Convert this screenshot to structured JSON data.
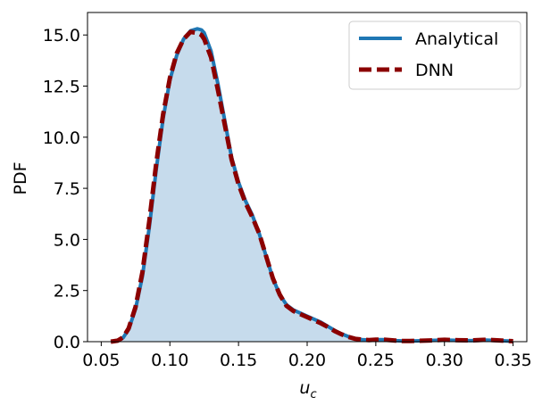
{
  "chart_data": {
    "type": "line",
    "xlabel": "u",
    "xlabel_sub": "c",
    "ylabel": "PDF",
    "xlim": [
      0.04,
      0.36
    ],
    "ylim": [
      0,
      16.1
    ],
    "x_ticks": [
      0.05,
      0.1,
      0.15,
      0.2,
      0.25,
      0.3,
      0.35
    ],
    "x_tick_labels": [
      "0.05",
      "0.10",
      "0.15",
      "0.20",
      "0.25",
      "0.30",
      "0.35"
    ],
    "y_ticks": [
      0,
      2.5,
      5,
      7.5,
      10,
      12.5,
      15
    ],
    "y_tick_labels": [
      "0.0",
      "2.5",
      "5.0",
      "7.5",
      "10.0",
      "12.5",
      "15.0"
    ],
    "grid": false,
    "legend_position": "top-right",
    "fill_color": "#c6dbec",
    "series": [
      {
        "name": "Analytical",
        "style": "solid",
        "color": "#1f77b4",
        "filled": true,
        "x": [
          0.057,
          0.062,
          0.066,
          0.07,
          0.075,
          0.08,
          0.085,
          0.09,
          0.095,
          0.1,
          0.105,
          0.11,
          0.115,
          0.12,
          0.123,
          0.125,
          0.13,
          0.135,
          0.14,
          0.145,
          0.15,
          0.155,
          0.16,
          0.165,
          0.17,
          0.175,
          0.18,
          0.185,
          0.19,
          0.195,
          0.2,
          0.205,
          0.21,
          0.215,
          0.22,
          0.225,
          0.23,
          0.235,
          0.24,
          0.245,
          0.25,
          0.255,
          0.26,
          0.265,
          0.27,
          0.275,
          0.28,
          0.29,
          0.3,
          0.31,
          0.32,
          0.33,
          0.34,
          0.35
        ],
        "y": [
          0,
          0.05,
          0.2,
          0.6,
          1.6,
          3.2,
          5.6,
          8.4,
          10.9,
          12.8,
          14.0,
          14.8,
          15.2,
          15.3,
          15.25,
          15.1,
          14.2,
          12.6,
          10.8,
          9.0,
          7.8,
          6.9,
          6.2,
          5.3,
          4.2,
          3.1,
          2.3,
          1.8,
          1.55,
          1.4,
          1.25,
          1.1,
          0.95,
          0.75,
          0.55,
          0.38,
          0.25,
          0.15,
          0.1,
          0.08,
          0.1,
          0.1,
          0.08,
          0.05,
          0.03,
          0.03,
          0.04,
          0.06,
          0.08,
          0.06,
          0.05,
          0.08,
          0.05,
          0.02
        ]
      },
      {
        "name": "DNN",
        "style": "dashed",
        "color": "#8b0000",
        "filled": false,
        "x": [
          0.057,
          0.062,
          0.066,
          0.07,
          0.075,
          0.08,
          0.085,
          0.09,
          0.095,
          0.1,
          0.105,
          0.11,
          0.115,
          0.12,
          0.123,
          0.125,
          0.13,
          0.135,
          0.14,
          0.145,
          0.15,
          0.155,
          0.16,
          0.165,
          0.17,
          0.175,
          0.18,
          0.185,
          0.19,
          0.195,
          0.2,
          0.205,
          0.21,
          0.215,
          0.22,
          0.225,
          0.23,
          0.235,
          0.24,
          0.245,
          0.25,
          0.255,
          0.26,
          0.265,
          0.27,
          0.275,
          0.28,
          0.29,
          0.3,
          0.31,
          0.32,
          0.33,
          0.34,
          0.35
        ],
        "y": [
          0,
          0.05,
          0.22,
          0.65,
          1.7,
          3.4,
          5.9,
          8.7,
          11.1,
          12.9,
          14.1,
          14.8,
          15.15,
          15.1,
          15.0,
          14.8,
          13.9,
          12.3,
          10.6,
          8.9,
          7.7,
          6.8,
          6.1,
          5.3,
          4.2,
          3.1,
          2.3,
          1.75,
          1.5,
          1.35,
          1.2,
          1.05,
          0.9,
          0.72,
          0.52,
          0.36,
          0.23,
          0.14,
          0.1,
          0.08,
          0.1,
          0.1,
          0.08,
          0.05,
          0.03,
          0.03,
          0.04,
          0.06,
          0.09,
          0.07,
          0.06,
          0.09,
          0.06,
          0.02
        ]
      }
    ]
  }
}
